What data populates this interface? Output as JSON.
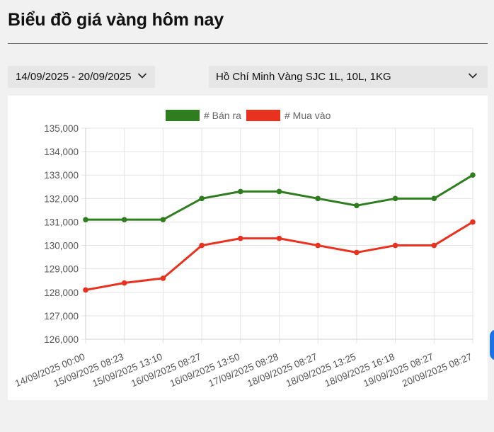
{
  "header": {
    "title": "Biểu đồ giá vàng hôm nay"
  },
  "filters": {
    "date_range": "14/09/2025 - 20/09/2025",
    "product": "Hồ Chí Minh Vàng SJC 1L, 10L, 1KG"
  },
  "colors": {
    "ban_ra": "#2e7d1f",
    "mua_vao": "#e8321f",
    "side_tab": "#1a73e8"
  },
  "chart_data": {
    "type": "line",
    "title": "",
    "xlabel": "",
    "ylabel": "",
    "ylim": [
      126000,
      135000
    ],
    "yticks": [
      126000,
      127000,
      128000,
      129000,
      130000,
      131000,
      132000,
      133000,
      134000,
      135000
    ],
    "ytick_labels": [
      "126,000",
      "127,000",
      "128,000",
      "129,000",
      "130,000",
      "131,000",
      "132,000",
      "133,000",
      "134,000",
      "135,000"
    ],
    "grid": true,
    "legend": "top",
    "categories": [
      "14/09/2025 00:00",
      "15/09/2025 08:23",
      "15/09/2025 13:10",
      "16/09/2025 08:27",
      "16/09/2025 13:50",
      "17/09/2025 08:28",
      "18/09/2025 08:27",
      "18/09/2025 13:25",
      "18/09/2025 16:18",
      "19/09/2025 08:27",
      "20/09/2025 08:27"
    ],
    "series": [
      {
        "name": "# Bán ra",
        "color": "#2e7d1f",
        "values": [
          131100,
          131100,
          131100,
          132000,
          132300,
          132300,
          132000,
          131700,
          132000,
          132000,
          133000
        ]
      },
      {
        "name": "# Mua vào",
        "color": "#e8321f",
        "values": [
          128100,
          128400,
          128600,
          130000,
          130300,
          130300,
          130000,
          129700,
          130000,
          130000,
          131000
        ]
      }
    ]
  }
}
